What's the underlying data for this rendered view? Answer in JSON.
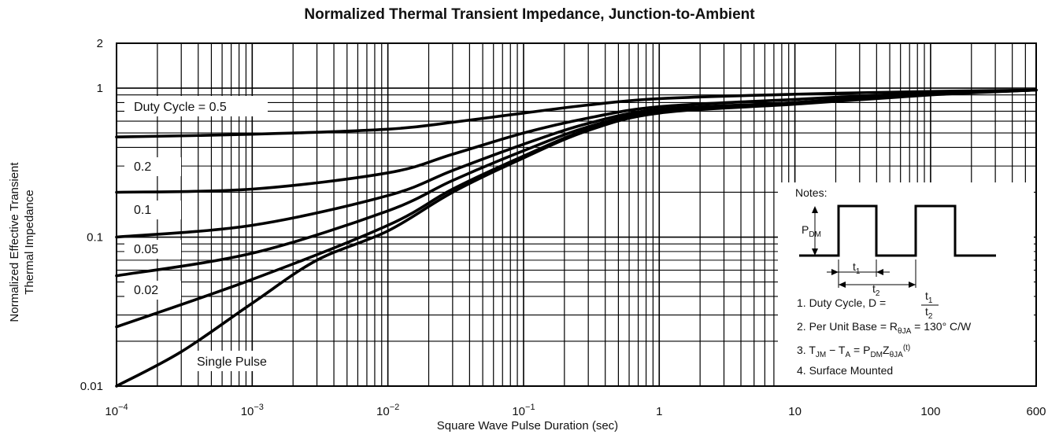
{
  "chart_data": {
    "type": "line",
    "title": "Normalized Thermal Transient Impedance, Junction-to-Ambient",
    "xlabel": "Square Wave Pulse Duration (sec)",
    "ylabel_lines": [
      "Normalized Effective Transient",
      "Thermal Impedance"
    ],
    "x_scale": "log",
    "y_scale": "log",
    "xlim": [
      0.0001,
      600
    ],
    "ylim": [
      0.01,
      2
    ],
    "grid": true,
    "x_ticks": [
      {
        "value": 0.0001,
        "base": "10",
        "exp": "−4"
      },
      {
        "value": 0.001,
        "base": "10",
        "exp": "−3"
      },
      {
        "value": 0.01,
        "base": "10",
        "exp": "−2"
      },
      {
        "value": 0.1,
        "base": "10",
        "exp": "−1"
      },
      {
        "value": 1,
        "base": "1",
        "exp": ""
      },
      {
        "value": 10,
        "base": "10",
        "exp": ""
      },
      {
        "value": 100,
        "base": "100",
        "exp": ""
      },
      {
        "value": 600,
        "base": "600",
        "exp": ""
      }
    ],
    "y_ticks": [
      {
        "value": 2,
        "label": "2"
      },
      {
        "value": 1,
        "label": "1"
      },
      {
        "value": 0.1,
        "label": "0.1"
      },
      {
        "value": 0.01,
        "label": "0.01"
      }
    ],
    "series": [
      {
        "name": "Duty Cycle = 0.5",
        "x": [
          0.0001,
          0.001,
          0.01,
          0.03,
          0.1,
          0.3,
          1,
          10,
          100,
          600
        ],
        "y": [
          0.47,
          0.49,
          0.53,
          0.59,
          0.68,
          0.77,
          0.85,
          0.91,
          0.95,
          0.97
        ]
      },
      {
        "name": "0.2",
        "x": [
          0.0001,
          0.001,
          0.01,
          0.03,
          0.1,
          0.3,
          1,
          10,
          100,
          600
        ],
        "y": [
          0.2,
          0.21,
          0.27,
          0.36,
          0.5,
          0.63,
          0.75,
          0.84,
          0.93,
          0.97
        ]
      },
      {
        "name": "0.1",
        "x": [
          0.0001,
          0.001,
          0.01,
          0.03,
          0.1,
          0.3,
          1,
          10,
          100,
          600
        ],
        "y": [
          0.1,
          0.12,
          0.19,
          0.28,
          0.42,
          0.58,
          0.72,
          0.8,
          0.92,
          0.97
        ]
      },
      {
        "name": "0.05",
        "x": [
          0.0001,
          0.001,
          0.01,
          0.03,
          0.1,
          0.3,
          1,
          10,
          100,
          600
        ],
        "y": [
          0.055,
          0.078,
          0.15,
          0.24,
          0.38,
          0.55,
          0.7,
          0.8,
          0.92,
          0.97
        ]
      },
      {
        "name": "0.02",
        "x": [
          0.0001,
          0.001,
          0.01,
          0.03,
          0.1,
          0.3,
          1,
          10,
          100,
          600
        ],
        "y": [
          0.025,
          0.052,
          0.12,
          0.21,
          0.35,
          0.53,
          0.69,
          0.79,
          0.91,
          0.97
        ]
      },
      {
        "name": "Single Pulse",
        "x": [
          0.0001,
          0.0003,
          0.001,
          0.003,
          0.01,
          0.03,
          0.1,
          0.3,
          1,
          10,
          100,
          600
        ],
        "y": [
          0.01,
          0.017,
          0.036,
          0.07,
          0.11,
          0.2,
          0.34,
          0.52,
          0.68,
          0.78,
          0.9,
          0.97
        ]
      }
    ],
    "series_labels": [
      "Duty Cycle = 0.5",
      "0.2",
      "0.1",
      "0.05",
      "0.02",
      "Single Pulse"
    ]
  },
  "notes": {
    "heading": "Notes:",
    "pdm_main": "P",
    "pdm_sub": "DM",
    "t1_main": "t",
    "t1_sub": "1",
    "t2_main": "t",
    "t2_sub": "2",
    "note1": "1. Duty Cycle, D =",
    "note2_prefix": "2. Per Unit Base = R",
    "note2_sub": "θJA",
    "note2_suffix": " = 130° C/W",
    "note3_prefix": "3. T",
    "note3_sub1": "JM",
    "note3_mid1": " − T",
    "note3_sub2": "A",
    "note3_mid2": " = P",
    "note3_sub3": "DM",
    "note3_mid3": "Z",
    "note3_sub4": "θJA",
    "note3_sup": "(t)",
    "note4": "4. Surface Mounted"
  }
}
